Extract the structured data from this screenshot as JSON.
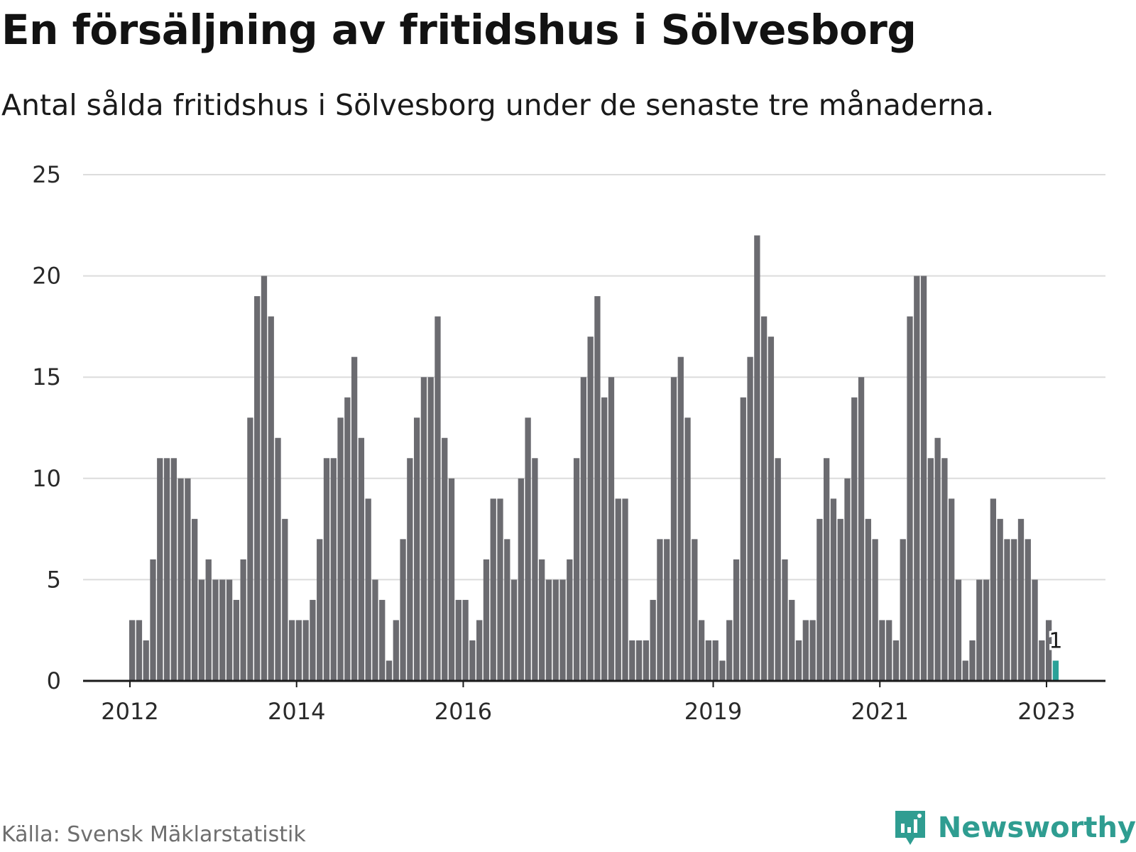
{
  "title": "En försäljning av fritidshus i Sölvesborg",
  "subtitle": "Antal sålda fritidshus i Sölvesborg under de senaste tre månaderna.",
  "source": "Källa: Svensk Mäklarstatistik",
  "brand": {
    "name": "Newsworthy",
    "icon": "newsworthy-logo-icon"
  },
  "colors": {
    "bar": "#6b6b70",
    "highlight": "#2aa198",
    "grid": "#dcdcdc",
    "axis": "#1a1a1a",
    "brand": "#2f9d91"
  },
  "chart_data": {
    "type": "bar",
    "title": "En försäljning av fritidshus i Sölvesborg",
    "subtitle": "Antal sålda fritidshus i Sölvesborg under de senaste tre månaderna.",
    "xlabel": "",
    "ylabel": "",
    "ylim": [
      0,
      25
    ],
    "yticks": [
      0,
      5,
      10,
      15,
      20,
      25
    ],
    "grid": true,
    "legend": "none",
    "x_start": "2012-01",
    "x_interval": "month",
    "xtick_labels": [
      {
        "label": "2012",
        "month_index": 0
      },
      {
        "label": "2014",
        "month_index": 24
      },
      {
        "label": "2016",
        "month_index": 48
      },
      {
        "label": "2019",
        "month_index": 84
      },
      {
        "label": "2021",
        "month_index": 108
      },
      {
        "label": "2023",
        "month_index": 132
      }
    ],
    "values": [
      3,
      3,
      2,
      6,
      11,
      11,
      11,
      10,
      10,
      8,
      5,
      6,
      5,
      5,
      5,
      4,
      6,
      13,
      19,
      20,
      18,
      12,
      8,
      3,
      3,
      3,
      4,
      7,
      11,
      11,
      13,
      14,
      16,
      12,
      9,
      5,
      4,
      1,
      3,
      7,
      11,
      13,
      15,
      15,
      18,
      12,
      10,
      4,
      4,
      2,
      3,
      6,
      9,
      9,
      7,
      5,
      10,
      13,
      11,
      6,
      5,
      5,
      5,
      6,
      11,
      15,
      17,
      19,
      14,
      15,
      9,
      9,
      2,
      2,
      2,
      4,
      7,
      7,
      15,
      16,
      13,
      7,
      3,
      2,
      2,
      1,
      3,
      6,
      14,
      16,
      22,
      18,
      17,
      11,
      6,
      4,
      2,
      3,
      3,
      8,
      11,
      9,
      8,
      10,
      14,
      15,
      8,
      7,
      3,
      3,
      2,
      7,
      18,
      20,
      20,
      11,
      12,
      11,
      9,
      5,
      1,
      2,
      5,
      5,
      9,
      8,
      7,
      7,
      8,
      7,
      5,
      2,
      3,
      1
    ],
    "highlight_index": 133,
    "data_labels": [
      {
        "index": 133,
        "text": "1"
      }
    ]
  }
}
